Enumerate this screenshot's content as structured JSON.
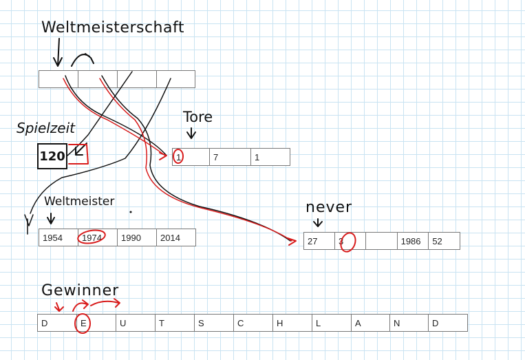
{
  "labels": {
    "weltmeisterschaft": "Weltmeisterschaft",
    "spielzeit": "Spielzeit",
    "tore": "Tore",
    "weltmeister": "Weltmeister",
    "never": "never",
    "gewinner": "Gewinner"
  },
  "spielzeit_value": "120",
  "tore_cells": [
    "1",
    "7",
    "1"
  ],
  "weltmeister_cells": [
    "1954",
    "1974",
    "1990",
    "2014"
  ],
  "never_cells": [
    "27",
    "3",
    "",
    "1986",
    "52"
  ],
  "gewinner_cells": [
    "D",
    "E",
    "U",
    "T",
    "S",
    "C",
    "H",
    "L",
    "A",
    "N",
    "D"
  ],
  "colors": {
    "ink_black": "#111111",
    "ink_red": "#d81b1b",
    "grid": "#c9e3f2"
  }
}
